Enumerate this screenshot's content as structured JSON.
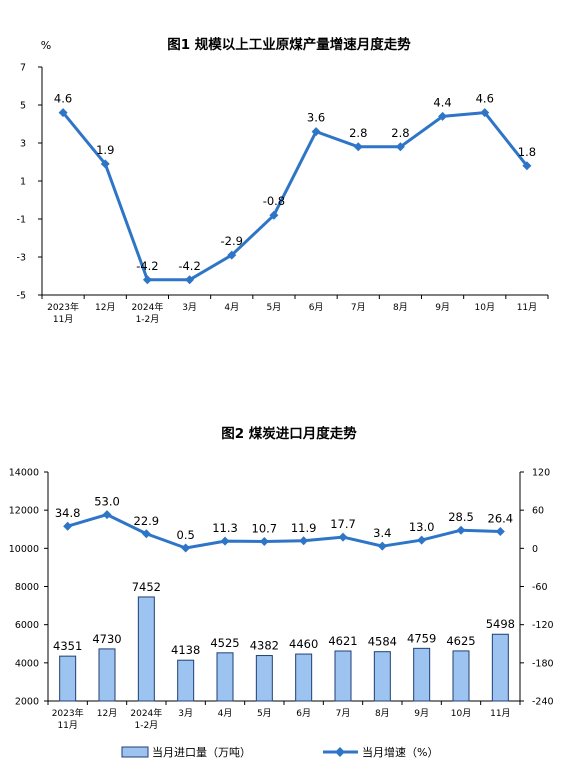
{
  "chart_data": [
    {
      "type": "line",
      "title": "图1  规模以上工业原煤产量增速月度走势",
      "ylabel": "%",
      "categories": [
        [
          "2023年",
          "11月"
        ],
        [
          "12月"
        ],
        [
          "2024年",
          "1-2月"
        ],
        [
          "3月"
        ],
        [
          "4月"
        ],
        [
          "5月"
        ],
        [
          "6月"
        ],
        [
          "7月"
        ],
        [
          "8月"
        ],
        [
          "9月"
        ],
        [
          "10月"
        ],
        [
          "11月"
        ]
      ],
      "values": [
        4.6,
        1.9,
        -4.2,
        -4.2,
        -2.9,
        -0.8,
        3.6,
        2.8,
        2.8,
        4.4,
        4.6,
        1.8
      ],
      "data_labels": [
        "4.6",
        "1.9",
        "-4.2",
        "-4.2",
        "-2.9",
        "-0.8",
        "3.6",
        "2.8",
        "2.8",
        "4.4",
        "4.6",
        "1.8"
      ],
      "ylim": [
        -5,
        7
      ],
      "yticks": [
        7,
        5,
        3,
        1,
        -1,
        -3,
        -5
      ],
      "grid": false,
      "colors": {
        "line": "#2e75c7"
      }
    },
    {
      "type": "bar+line",
      "title": "图2  煤炭进口月度走势",
      "categories": [
        [
          "2023年",
          "11月"
        ],
        [
          "12月"
        ],
        [
          "2024年",
          "1-2月"
        ],
        [
          "3月"
        ],
        [
          "4月"
        ],
        [
          "5月"
        ],
        [
          "6月"
        ],
        [
          "7月"
        ],
        [
          "8月"
        ],
        [
          "9月"
        ],
        [
          "10月"
        ],
        [
          "11月"
        ]
      ],
      "series": [
        {
          "name": "当月进口量（万吨）",
          "type": "bar",
          "axis": "left",
          "values": [
            4351,
            4730,
            7452,
            4138,
            4525,
            4382,
            4460,
            4621,
            4584,
            4759,
            4625,
            5498
          ]
        },
        {
          "name": "当月增速（%）",
          "type": "line",
          "axis": "right",
          "values": [
            34.8,
            53.0,
            22.9,
            0.5,
            11.3,
            10.7,
            11.9,
            17.7,
            3.4,
            13.0,
            28.5,
            26.4
          ],
          "data_labels": [
            "34.8",
            "53.0",
            "22.9",
            "0.5",
            "11.3",
            "10.7",
            "11.9",
            "17.7",
            "3.4",
            "13.0",
            "28.5",
            "26.4"
          ]
        }
      ],
      "ylim_left": [
        2000,
        14000
      ],
      "yticks_left": [
        14000,
        12000,
        10000,
        8000,
        6000,
        4000,
        2000
      ],
      "ylim_right": [
        -240,
        120
      ],
      "yticks_right": [
        120,
        60,
        0,
        -60,
        -120,
        -180,
        -240
      ],
      "legend_position": "bottom",
      "grid": false,
      "colors": {
        "bar_fill": "#9dc3f0",
        "bar_stroke": "#1f3f73",
        "line": "#2e75c7"
      }
    }
  ]
}
